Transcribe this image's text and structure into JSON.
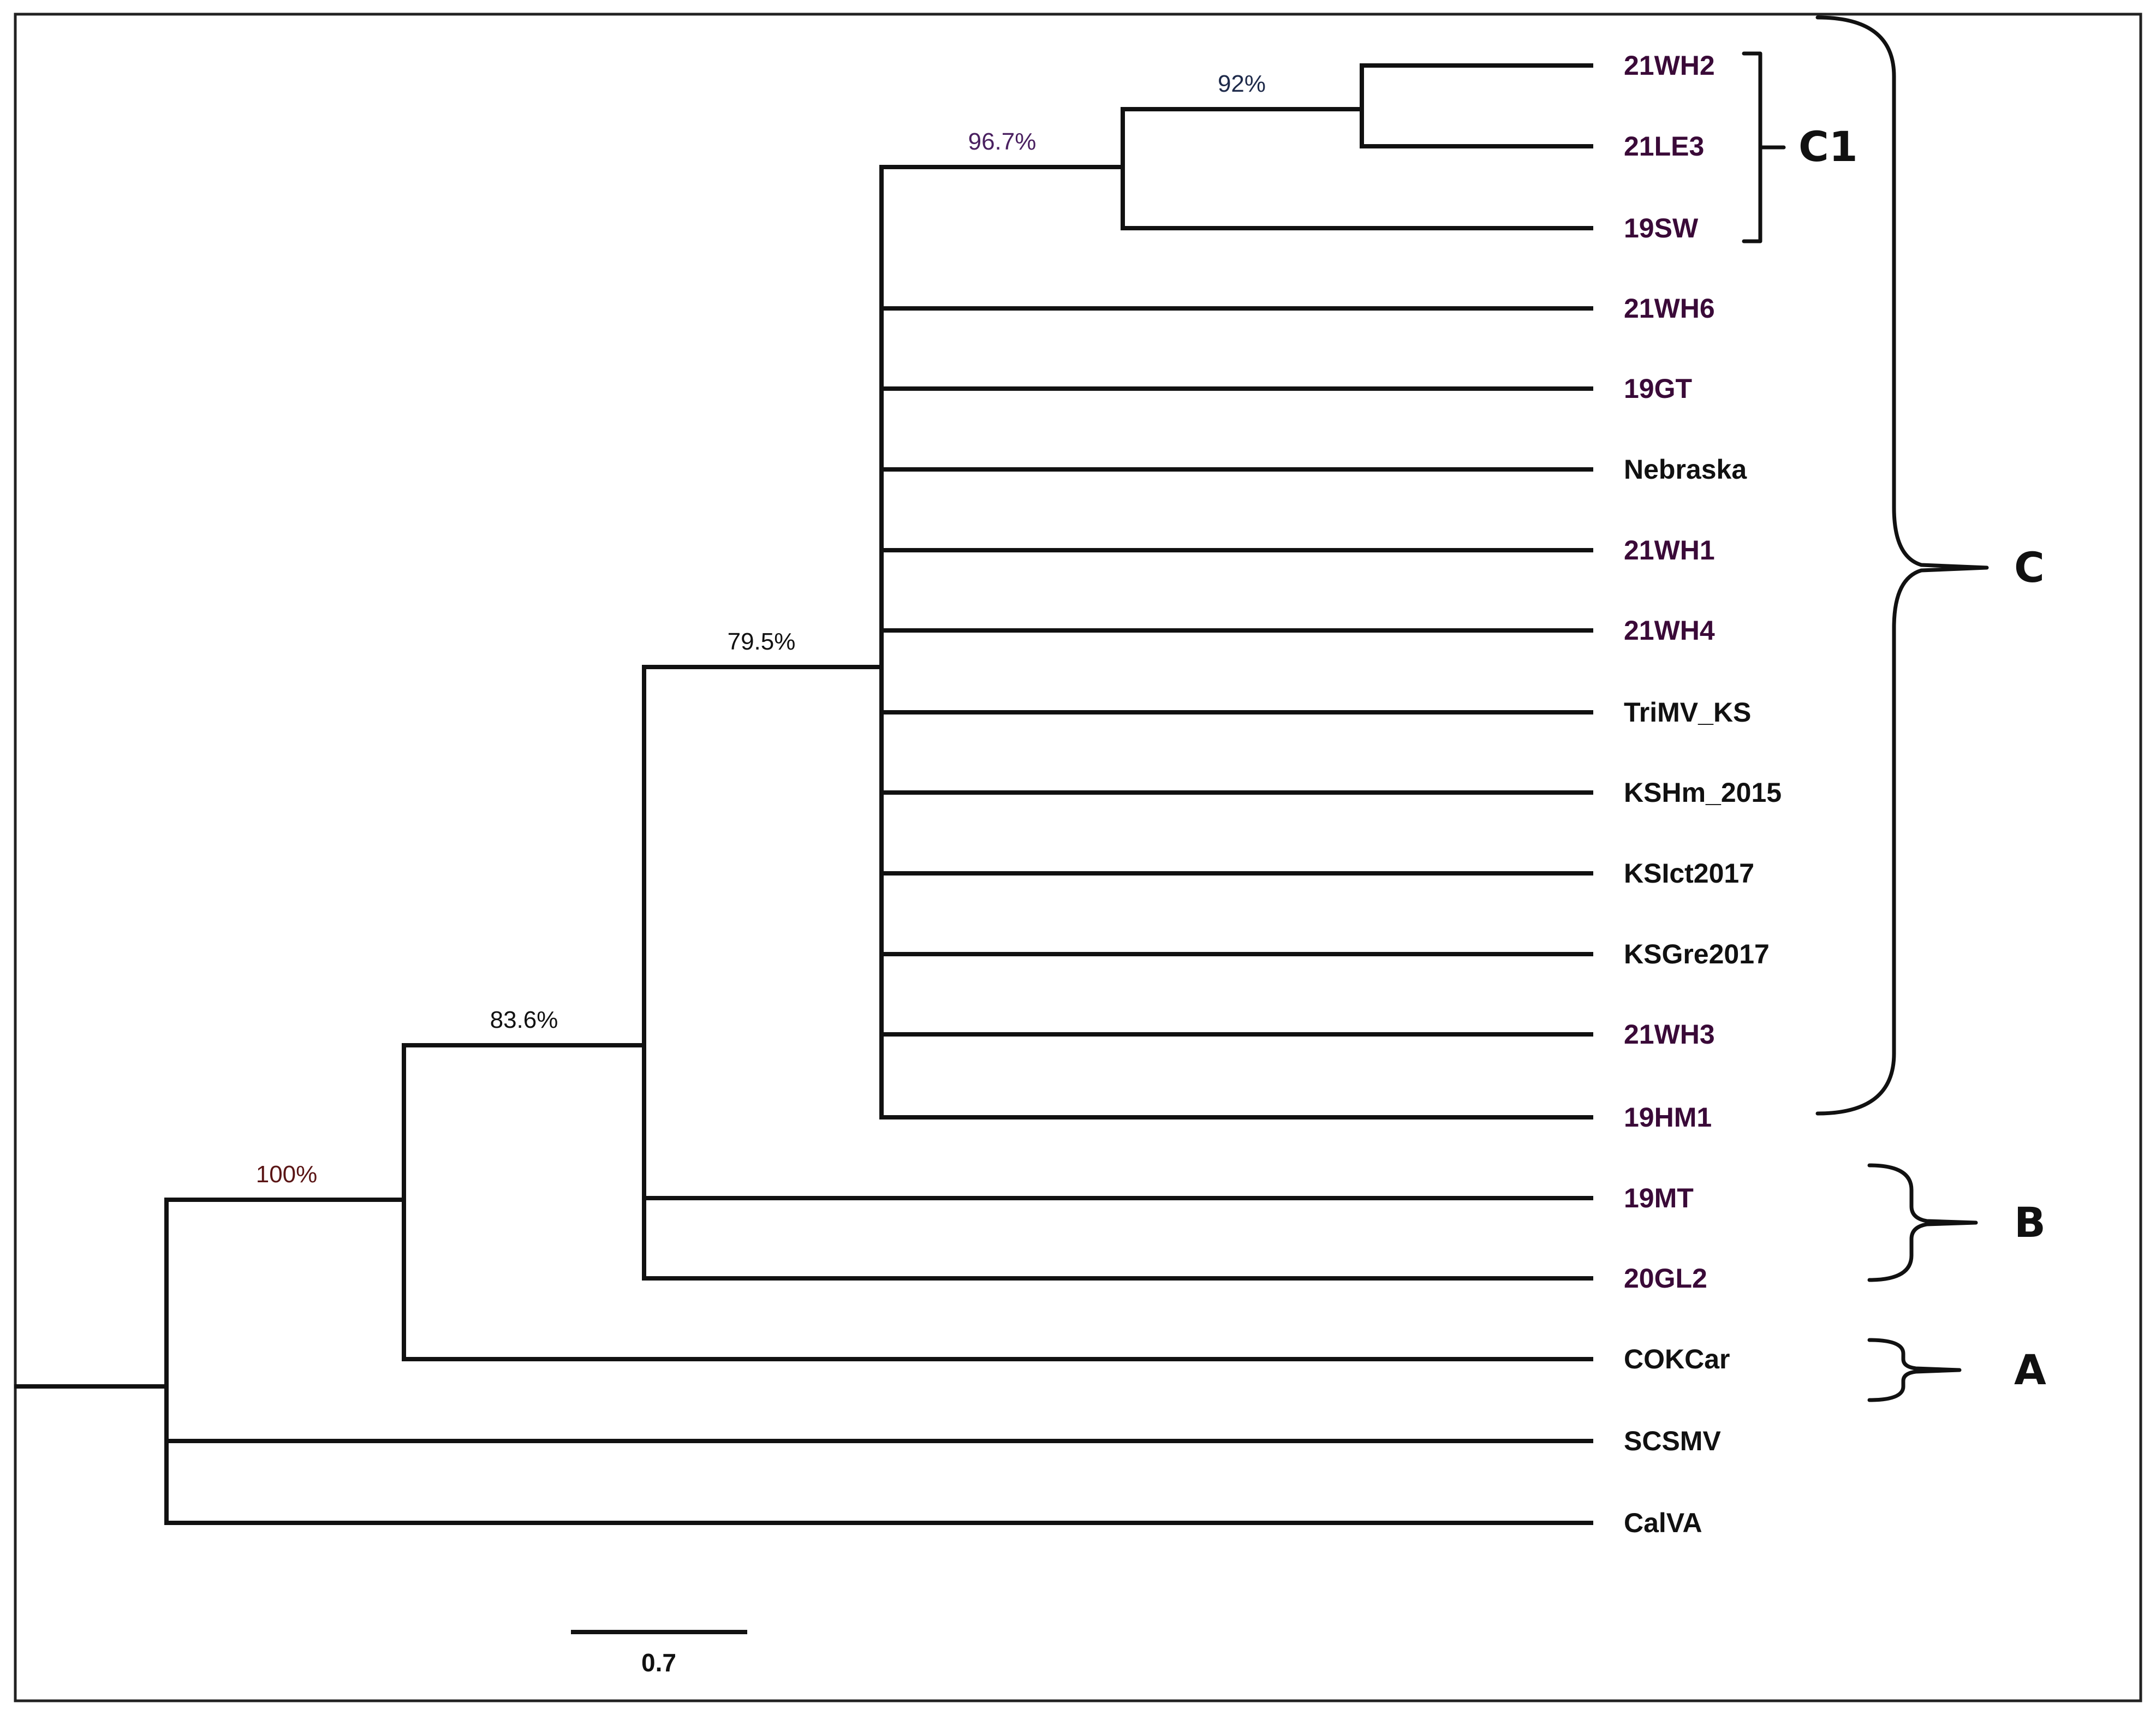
{
  "tree": {
    "leaves": [
      {
        "name": "21WH2",
        "color": "#3a0a38"
      },
      {
        "name": "21LE3",
        "color": "#3a0a38"
      },
      {
        "name": "19SW",
        "color": "#3a0a38"
      },
      {
        "name": "21WH6",
        "color": "#3a0a38"
      },
      {
        "name": "19GT",
        "color": "#3a0a38"
      },
      {
        "name": "Nebraska",
        "color": "#111111"
      },
      {
        "name": "21WH1",
        "color": "#3a0a38"
      },
      {
        "name": "21WH4",
        "color": "#3a0a38"
      },
      {
        "name": "TriMV_KS",
        "color": "#111111"
      },
      {
        "name": "KSHm_2015",
        "color": "#111111"
      },
      {
        "name": "KSIct2017",
        "color": "#111111"
      },
      {
        "name": "KSGre2017",
        "color": "#111111"
      },
      {
        "name": "21WH3",
        "color": "#3a0a38"
      },
      {
        "name": "19HM1",
        "color": "#3a0a38"
      },
      {
        "name": "19MT",
        "color": "#3a0a38"
      },
      {
        "name": "20GL2",
        "color": "#3a0a38"
      },
      {
        "name": "COKCar",
        "color": "#111111"
      },
      {
        "name": "SCSMV",
        "color": "#111111"
      },
      {
        "name": "CalVA",
        "color": "#111111"
      }
    ],
    "support_values": [
      {
        "label": "92%",
        "color": "#1e2a4a"
      },
      {
        "label": "96.7%",
        "color": "#4a2060"
      },
      {
        "label": "79.5%",
        "color": "#111111"
      },
      {
        "label": "83.6%",
        "color": "#111111"
      },
      {
        "label": "100%",
        "color": "#5a1515"
      }
    ],
    "clades": {
      "c1": "C1",
      "c": "C",
      "b": "B",
      "a": "A"
    },
    "scale_bar": {
      "label": "0.7"
    }
  }
}
